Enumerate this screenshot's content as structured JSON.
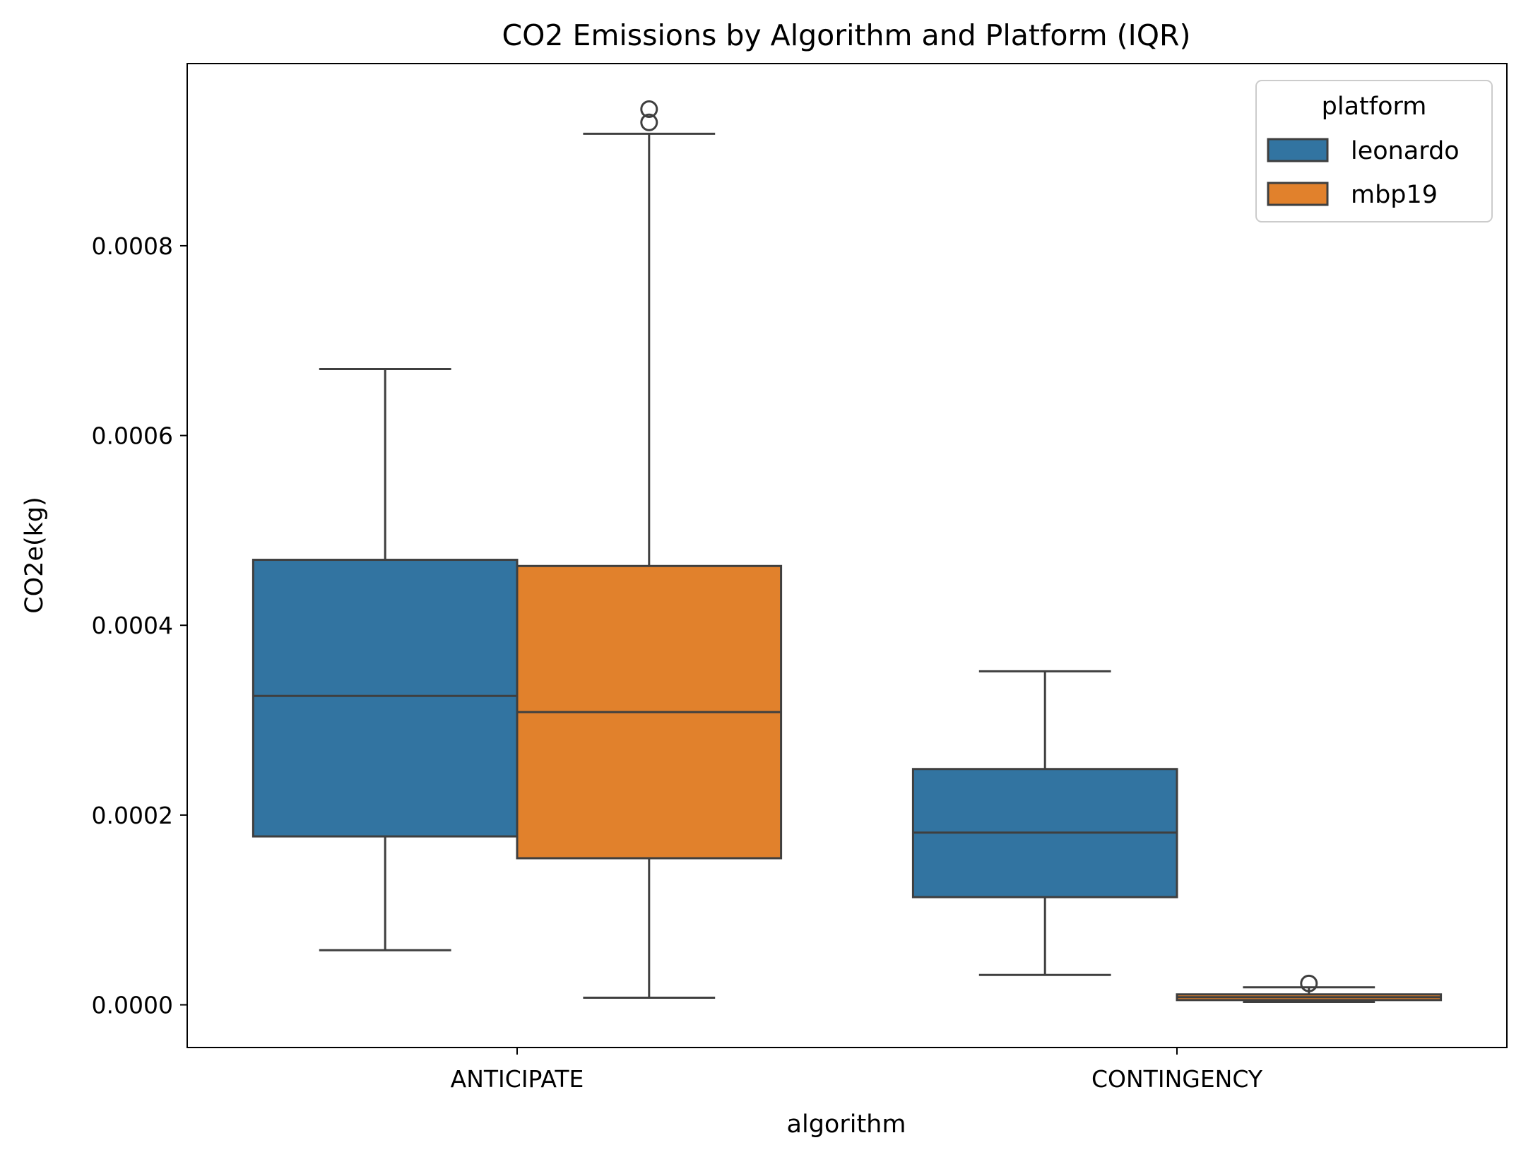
{
  "chart_data": {
    "type": "boxplot",
    "title": "CO2 Emissions by Algorithm and Platform (IQR)",
    "xlabel": "algorithm",
    "ylabel": "CO2e(kg)",
    "ylim": [
      -4.5e-05,
      0.000992
    ],
    "yticks": [
      0,
      0.0002,
      0.0004,
      0.0006,
      0.0008
    ],
    "ytick_labels": [
      "0.0000",
      "0.0002",
      "0.0004",
      "0.0006",
      "0.0008"
    ],
    "categories": [
      "ANTICIPATE",
      "CONTINGENCY"
    ],
    "grid": false,
    "legend": {
      "title": "platform",
      "position": "top-right"
    },
    "series": [
      {
        "name": "leonardo",
        "color": "#3274a1",
        "boxes": [
          {
            "category": "ANTICIPATE",
            "whisker_low": 5.75e-05,
            "q1": 0.0001775,
            "median": 0.0003255,
            "q3": 0.000469,
            "whisker_high": 0.00067,
            "outliers": []
          },
          {
            "category": "CONTINGENCY",
            "whisker_low": 3.15e-05,
            "q1": 0.0001135,
            "median": 0.0001815,
            "q3": 0.0002485,
            "whisker_high": 0.0003515,
            "outliers": []
          }
        ]
      },
      {
        "name": "mbp19",
        "color": "#e1812c",
        "boxes": [
          {
            "category": "ANTICIPATE",
            "whisker_low": 7.5e-06,
            "q1": 0.0001545,
            "median": 0.0003085,
            "q3": 0.0004625,
            "whisker_high": 0.000918,
            "outliers": [
              0.000944,
              0.00093
            ]
          },
          {
            "category": "CONTINGENCY",
            "whisker_low": 3e-06,
            "q1": 5e-06,
            "median": 8e-06,
            "q3": 1.1e-05,
            "whisker_high": 1.85e-05,
            "outliers": [
              2.25e-05
            ]
          }
        ]
      }
    ]
  }
}
